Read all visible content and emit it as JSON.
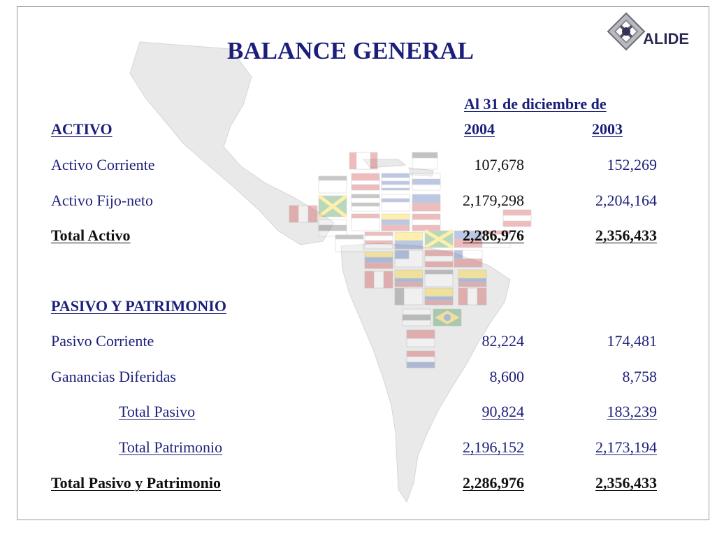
{
  "slide": {
    "title": "BALANCE GENERAL",
    "date_header": "Al 31 de diciembre de",
    "year_1": "2004",
    "year_2": "2003",
    "activo_header": "ACTIVO",
    "pasivo_header": "PASIVO Y PATRIMONIO"
  },
  "logo": {
    "text": "ALIDE"
  },
  "rows": {
    "activo_corriente": {
      "label": "Activo Corriente",
      "v2004": "107,678",
      "v2003": "152,269"
    },
    "activo_fijo": {
      "label": "Activo Fijo-neto",
      "v2004": "2,179,298",
      "v2003": "2,204,164"
    },
    "total_activo": {
      "label": "Total Activo",
      "v2004": "2,286,976",
      "v2003": "2,356,433"
    },
    "pasivo_corriente": {
      "label": "Pasivo Corriente",
      "v2004": "82,224",
      "v2003": "174,481"
    },
    "ganancias_diferidas": {
      "label": "Ganancias Diferidas",
      "v2004": "8,600",
      "v2003": "8,758"
    },
    "total_pasivo": {
      "label": "Total Pasivo",
      "v2004": "90,824",
      "v2003": "183,239"
    },
    "total_patrimonio": {
      "label": "Total Patrimonio",
      "v2004": "2,196,152",
      "v2003": "2,173,194"
    },
    "total_pasivo_patrimonio": {
      "label": "Total Pasivo y Patrimonio",
      "v2004": "2,286,976",
      "v2003": "2,356,433"
    }
  },
  "colors": {
    "title": "#1b1f7a",
    "text": "#111111",
    "frame": "#9a9a9a",
    "map": "#e6e6e6"
  }
}
